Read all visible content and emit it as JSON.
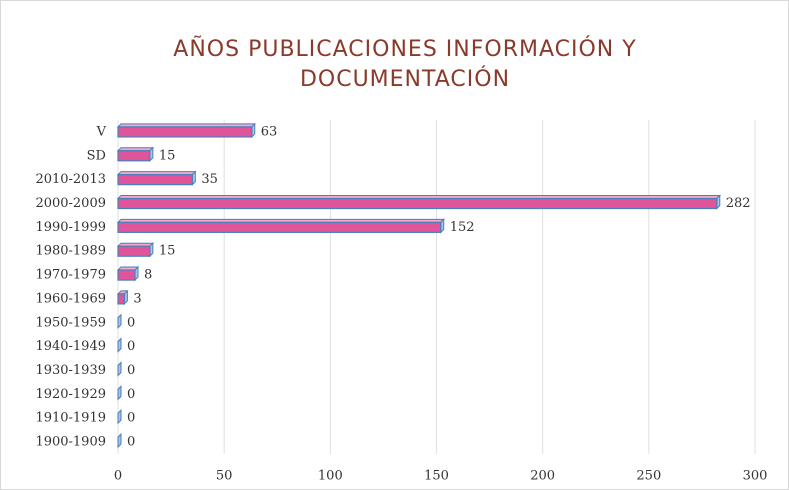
{
  "chart_data": {
    "type": "bar",
    "orientation": "horizontal",
    "title": [
      "AÑOS PUBLICACIONES INFORMACIÓN Y",
      "DOCUMENTACIÓN"
    ],
    "categories": [
      "V",
      "SD",
      "2010-2013",
      "2000-2009",
      "1990-1999",
      "1980-1989",
      "1970-1979",
      "1960-1969",
      "1950-1959",
      "1940-1949",
      "1930-1939",
      "1920-1929",
      "1910-1919",
      "1900-1909"
    ],
    "values": [
      63,
      15,
      35,
      282,
      152,
      15,
      8,
      3,
      0,
      0,
      0,
      0,
      0,
      0
    ],
    "color": "#e0559a",
    "edge_color": "#4a7ebb",
    "xlim": [
      0,
      300
    ],
    "xticks": [
      0,
      50,
      100,
      150,
      200,
      250,
      300
    ],
    "grid": true
  }
}
